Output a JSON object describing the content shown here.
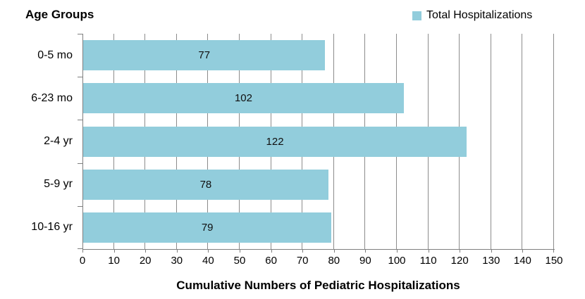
{
  "chart_data": {
    "type": "bar",
    "orientation": "horizontal",
    "title": "Age Groups",
    "categories": [
      "0-5 mo",
      "6-23 mo",
      "2-4 yr",
      "5-9 yr",
      "10-16 yr"
    ],
    "series": [
      {
        "name": "Total Hospitalizations",
        "values": [
          77,
          102,
          122,
          78,
          79
        ]
      }
    ],
    "data_labels": [
      77,
      102,
      122,
      78,
      79
    ],
    "xlabel": "Cumulative Numbers of Pediatric Hospitalizations",
    "ylabel": "",
    "xlim": [
      0,
      150
    ],
    "xticks": [
      0,
      10,
      20,
      30,
      40,
      50,
      60,
      70,
      80,
      90,
      100,
      110,
      120,
      130,
      140,
      150
    ],
    "grid": true,
    "legend_position": "top-right",
    "colors": {
      "bar": "#92CDDC",
      "gridline": "#8C8C8C",
      "axis": "#7F7F7F",
      "text": "#000000"
    }
  }
}
